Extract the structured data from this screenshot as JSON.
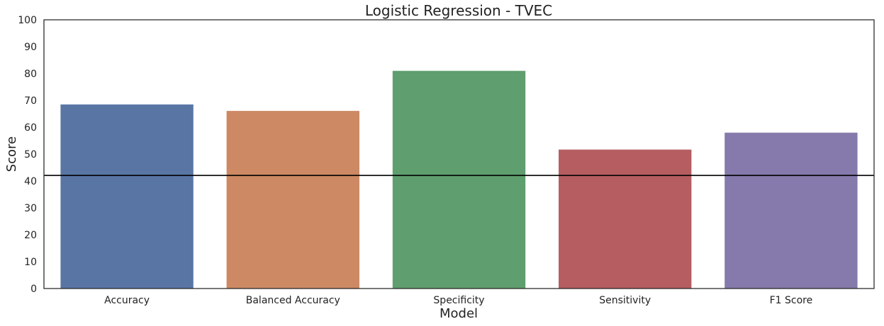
{
  "chart_data": {
    "type": "bar",
    "title": "Logistic Regression - TVEC",
    "xlabel": "Model",
    "ylabel": "Score",
    "categories": [
      "Accuracy",
      "Balanced Accuracy",
      "Specificity",
      "Sensitivity",
      "F1 Score"
    ],
    "values": [
      68.5,
      66.1,
      81.0,
      51.7,
      58.0
    ],
    "colors": [
      "#5875a4",
      "#cc8963",
      "#5f9e6e",
      "#b55d60",
      "#857aab"
    ],
    "ylim": [
      0,
      100
    ],
    "yticks": [
      0,
      10,
      20,
      30,
      40,
      50,
      60,
      70,
      80,
      90,
      100
    ],
    "reference_line": 42.1,
    "grid": false
  }
}
